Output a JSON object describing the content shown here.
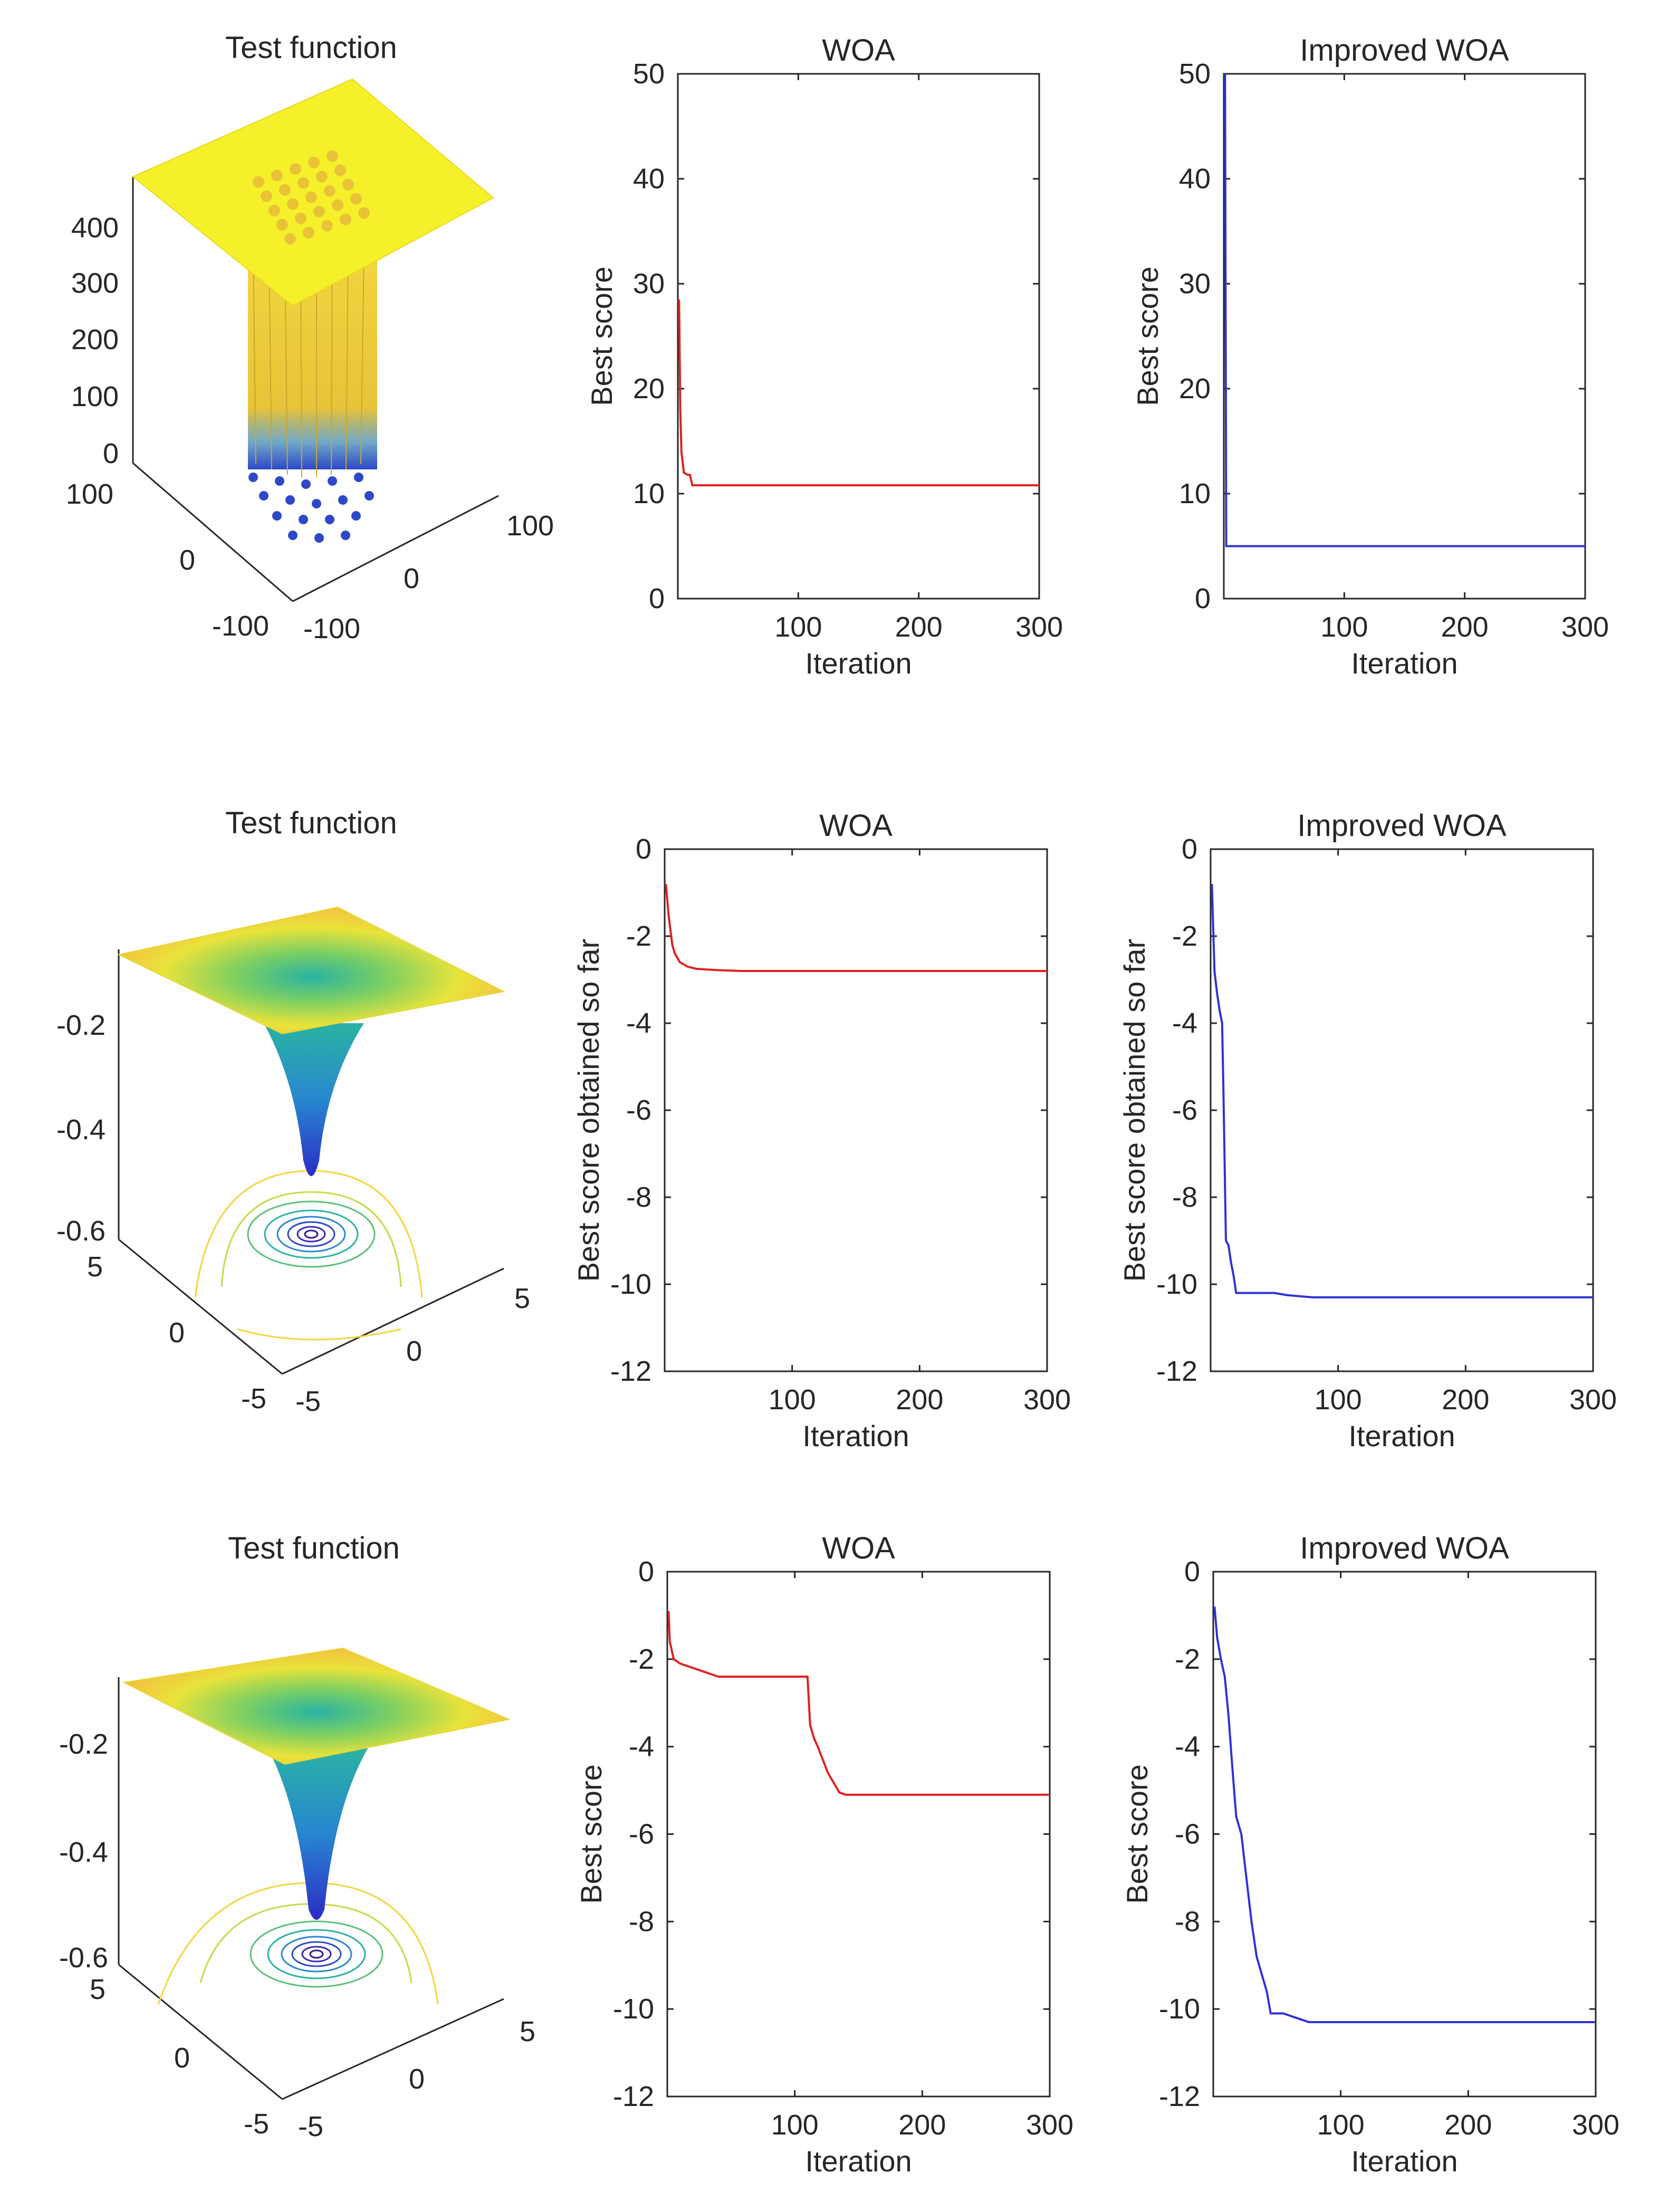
{
  "figure": {
    "rows": [
      {
        "surface": {
          "title": "Test function",
          "kind": "flat_top_with_wells",
          "z_ticks": [
            "400",
            "300",
            "200",
            "100",
            "0"
          ],
          "x_ticks": [
            "100",
            "0",
            "-100"
          ],
          "y_ticks": [
            "-100",
            "0",
            "100"
          ]
        }
      },
      {
        "surface": {
          "title": "Test function",
          "kind": "funnel",
          "z_ticks": [
            "-0.2",
            "-0.4",
            "-0.6"
          ],
          "x_ticks": [
            "5",
            "0",
            "-5"
          ],
          "y_ticks": [
            "-5",
            "0",
            "5"
          ]
        }
      },
      {
        "surface": {
          "title": "Test function",
          "kind": "funnel",
          "z_ticks": [
            "-0.2",
            "-0.4",
            "-0.6"
          ],
          "x_ticks": [
            "5",
            "0",
            "-5"
          ],
          "y_ticks": [
            "-5",
            "0",
            "5"
          ]
        }
      }
    ],
    "colors": {
      "woa": "#e02020",
      "improved": "#3030d8",
      "surface_top": "#f5f02a",
      "surface_mid": "#2ab3a2",
      "surface_deep": "#2d48c8"
    }
  },
  "chart_data": [
    {
      "type": "line",
      "title": "WOA",
      "xlabel": "Iteration",
      "ylabel": "Best score",
      "xlim": [
        0,
        300
      ],
      "ylim": [
        0,
        50
      ],
      "xticks": [
        100,
        200,
        300
      ],
      "yticks": [
        0,
        10,
        20,
        30,
        40,
        50
      ],
      "series": [
        {
          "name": "WOA",
          "color": "#e02020",
          "x": [
            1,
            2,
            3,
            5,
            8,
            10,
            12,
            15,
            300
          ],
          "y": [
            28.5,
            18,
            14,
            12,
            11.8,
            11.8,
            10.8,
            10.8,
            10.8
          ]
        }
      ]
    },
    {
      "type": "line",
      "title": "Improved WOA",
      "xlabel": "Iteration",
      "ylabel": "Best score",
      "xlim": [
        0,
        300
      ],
      "ylim": [
        0,
        50
      ],
      "xticks": [
        100,
        200,
        300
      ],
      "yticks": [
        0,
        10,
        20,
        30,
        40,
        50
      ],
      "series": [
        {
          "name": "Improved WOA",
          "color": "#3030d8",
          "x": [
            1,
            2,
            3,
            300
          ],
          "y": [
            50,
            5,
            5,
            5
          ]
        }
      ]
    },
    {
      "type": "line",
      "title": "WOA",
      "xlabel": "Iteration",
      "ylabel": "Best score obtained so far",
      "xlim": [
        0,
        300
      ],
      "ylim": [
        -12,
        0
      ],
      "xticks": [
        100,
        200,
        300
      ],
      "yticks": [
        0,
        -2,
        -4,
        -6,
        -8,
        -10,
        -12
      ],
      "series": [
        {
          "name": "WOA",
          "color": "#e02020",
          "x": [
            1,
            3,
            6,
            8,
            12,
            18,
            25,
            40,
            60,
            100,
            300
          ],
          "y": [
            -0.8,
            -1.5,
            -2.2,
            -2.4,
            -2.6,
            -2.7,
            -2.75,
            -2.78,
            -2.8,
            -2.8,
            -2.8
          ]
        }
      ]
    },
    {
      "type": "line",
      "title": "Improved WOA",
      "xlabel": "Iteration",
      "ylabel": "Best score obtained so far",
      "xlim": [
        0,
        300
      ],
      "ylim": [
        -12,
        0
      ],
      "xticks": [
        100,
        200,
        300
      ],
      "yticks": [
        0,
        -2,
        -4,
        -6,
        -8,
        -10,
        -12
      ],
      "series": [
        {
          "name": "Improved WOA",
          "color": "#3030d8",
          "x": [
            1,
            3,
            5,
            7,
            9,
            10,
            12,
            14,
            16,
            18,
            20,
            25,
            30,
            50,
            60,
            80,
            100,
            300
          ],
          "y": [
            -0.8,
            -2.8,
            -3.3,
            -3.7,
            -4.0,
            -5.5,
            -9.0,
            -9.1,
            -9.5,
            -9.8,
            -10.2,
            -10.2,
            -10.2,
            -10.2,
            -10.25,
            -10.3,
            -10.3,
            -10.3
          ]
        }
      ]
    },
    {
      "type": "line",
      "title": "WOA",
      "xlabel": "Iteration",
      "ylabel": "Best score",
      "xlim": [
        0,
        300
      ],
      "ylim": [
        -12,
        0
      ],
      "xticks": [
        100,
        200,
        300
      ],
      "yticks": [
        0,
        -2,
        -4,
        -6,
        -8,
        -10,
        -12
      ],
      "series": [
        {
          "name": "WOA",
          "color": "#e02020",
          "x": [
            1,
            2,
            5,
            10,
            20,
            30,
            40,
            60,
            80,
            110,
            112,
            115,
            118,
            122,
            126,
            130,
            135,
            140,
            300
          ],
          "y": [
            -0.9,
            -1.6,
            -2.0,
            -2.1,
            -2.2,
            -2.3,
            -2.4,
            -2.4,
            -2.4,
            -2.4,
            -3.5,
            -3.8,
            -4.0,
            -4.3,
            -4.6,
            -4.8,
            -5.05,
            -5.1,
            -5.1
          ]
        }
      ]
    },
    {
      "type": "line",
      "title": "Improved WOA",
      "xlabel": "Iteration",
      "ylabel": "Best score",
      "xlim": [
        0,
        300
      ],
      "ylim": [
        -12,
        0
      ],
      "xticks": [
        100,
        200,
        300
      ],
      "yticks": [
        0,
        -2,
        -4,
        -6,
        -8,
        -10,
        -12
      ],
      "series": [
        {
          "name": "Improved WOA",
          "color": "#3030d8",
          "x": [
            1,
            3,
            6,
            9,
            12,
            15,
            18,
            22,
            26,
            30,
            34,
            38,
            42,
            45,
            55,
            65,
            75,
            300
          ],
          "y": [
            -0.8,
            -1.5,
            -2.0,
            -2.4,
            -3.3,
            -4.5,
            -5.6,
            -6.0,
            -7.0,
            -8.0,
            -8.8,
            -9.2,
            -9.6,
            -10.1,
            -10.1,
            -10.2,
            -10.3,
            -10.3
          ]
        }
      ]
    }
  ]
}
